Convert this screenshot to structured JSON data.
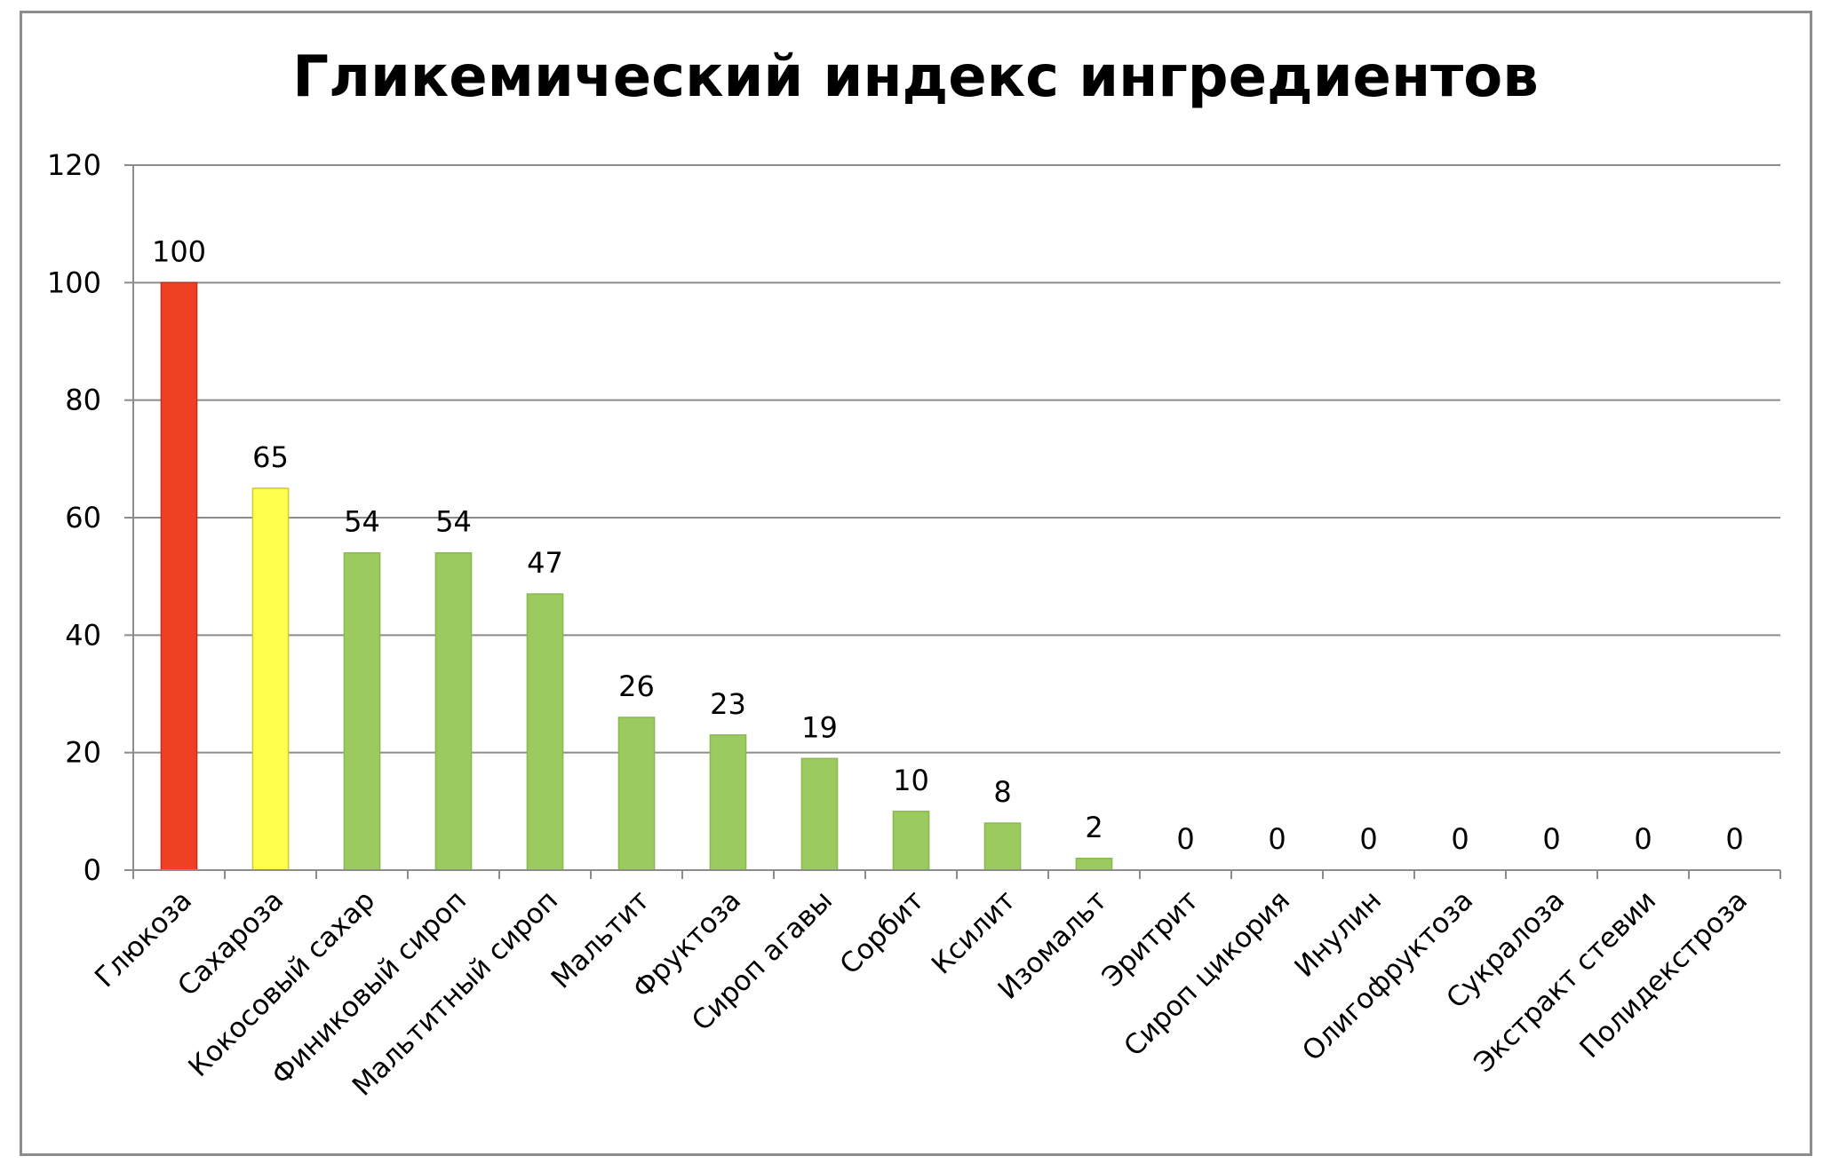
{
  "chart_data": {
    "type": "bar",
    "title": "Гликемический индекс ингредиентов",
    "categories": [
      "Глюкоза",
      "Сахароза",
      "Кокосовый сахар",
      "Финиковый сироп",
      "Мальтитный сироп",
      "Мальтит",
      "Фруктоза",
      "Сироп агавы",
      "Сорбит",
      "Ксилит",
      "Изомальт",
      "Эритрит",
      "Сироп цикория",
      "Инулин",
      "Олигофруктоза",
      "Сукралоза",
      "Экстракт стевии",
      "Полидекстроза"
    ],
    "values": [
      100,
      65,
      54,
      54,
      47,
      26,
      23,
      19,
      10,
      8,
      2,
      0,
      0,
      0,
      0,
      0,
      0,
      0
    ],
    "bar_colors": [
      "#f04023",
      "#ffff4d",
      "#9bcb5f",
      "#9bcb5f",
      "#9bcb5f",
      "#9bcb5f",
      "#9bcb5f",
      "#9bcb5f",
      "#9bcb5f",
      "#9bcb5f",
      "#9bcb5f",
      "#9bcb5f",
      "#9bcb5f",
      "#9bcb5f",
      "#9bcb5f",
      "#9bcb5f",
      "#9bcb5f",
      "#9bcb5f"
    ],
    "bar_edge_colors": [
      "#c0321a",
      "#d4c82a",
      "#8ab84f",
      "#8ab84f",
      "#8ab84f",
      "#8ab84f",
      "#8ab84f",
      "#8ab84f",
      "#8ab84f",
      "#8ab84f",
      "#8ab84f",
      "#8ab84f",
      "#8ab84f",
      "#8ab84f",
      "#8ab84f",
      "#8ab84f",
      "#8ab84f",
      "#8ab84f"
    ],
    "ylim": [
      0,
      120
    ],
    "yticks": [
      0,
      20,
      40,
      60,
      80,
      100,
      120
    ],
    "grid": true,
    "gridline_color": "#8c8c8c",
    "legend": "none",
    "xlabel": "",
    "ylabel": ""
  }
}
